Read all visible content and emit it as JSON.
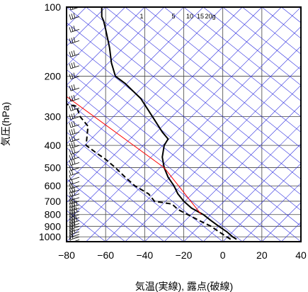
{
  "chart_data": {
    "type": "line",
    "title": "",
    "xlabel": "気温(実線), 露点(破線)",
    "ylabel": "気圧(hPa)",
    "xlim": [
      -80,
      40
    ],
    "ylim": [
      1050,
      100
    ],
    "y_scale": "log",
    "x_ticks": [
      -80,
      -60,
      -40,
      -20,
      0,
      20,
      40
    ],
    "y_ticks": [
      100,
      200,
      300,
      400,
      500,
      600,
      700,
      800,
      900,
      1000
    ],
    "mixing_ratio_labels": [
      "1",
      "5",
      "10",
      "15",
      "20g"
    ],
    "colors": {
      "temperature": "#000000",
      "dewpoint": "#000000",
      "isotherm": "#3030e0",
      "reference": "#ff0000",
      "grid": "#444444",
      "barb": "#000000"
    },
    "series": [
      {
        "style": "solid",
        "points": [
          [
            7,
            1025
          ],
          [
            5,
            1000
          ],
          [
            2,
            950
          ],
          [
            -2,
            900
          ],
          [
            -6,
            850
          ],
          [
            -10,
            800
          ],
          [
            -16,
            750
          ],
          [
            -20,
            700
          ],
          [
            -23,
            650
          ],
          [
            -25,
            600
          ],
          [
            -28,
            550
          ],
          [
            -30,
            500
          ],
          [
            -31,
            450
          ],
          [
            -30,
            400
          ],
          [
            -28,
            375
          ],
          [
            -31,
            350
          ],
          [
            -36,
            300
          ],
          [
            -42,
            250
          ],
          [
            -50,
            215
          ],
          [
            -55,
            200
          ],
          [
            -57,
            175
          ],
          [
            -58,
            150
          ],
          [
            -60,
            125
          ],
          [
            -61,
            115
          ],
          [
            -62,
            110
          ],
          [
            -62,
            100
          ]
        ]
      },
      {
        "style": "dashed",
        "points": [
          [
            4,
            1025
          ],
          [
            2,
            1000
          ],
          [
            -2,
            950
          ],
          [
            -6,
            900
          ],
          [
            -12,
            850
          ],
          [
            -18,
            800
          ],
          [
            -23,
            760
          ],
          [
            -26,
            720
          ],
          [
            -35,
            700
          ],
          [
            -38,
            650
          ],
          [
            -45,
            600
          ],
          [
            -50,
            550
          ],
          [
            -55,
            500
          ],
          [
            -60,
            460
          ],
          [
            -65,
            430
          ],
          [
            -70,
            400
          ],
          [
            -69,
            330
          ],
          [
            -73,
            300
          ],
          [
            -75,
            270
          ],
          [
            -80,
            265
          ]
        ]
      },
      {
        "style": "reference",
        "points": [
          [
            -80,
            245
          ],
          [
            -30,
            500
          ],
          [
            -11,
            800
          ]
        ]
      }
    ],
    "wind_barbs": [
      {
        "pressure": 1030,
        "speed": 5
      },
      {
        "pressure": 1000,
        "speed": 10
      },
      {
        "pressure": 975,
        "speed": 10
      },
      {
        "pressure": 950,
        "speed": 15
      },
      {
        "pressure": 925,
        "speed": 10
      },
      {
        "pressure": 900,
        "speed": 15
      },
      {
        "pressure": 875,
        "speed": 15
      },
      {
        "pressure": 850,
        "speed": 20
      },
      {
        "pressure": 825,
        "speed": 15
      },
      {
        "pressure": 800,
        "speed": 15
      },
      {
        "pressure": 775,
        "speed": 20
      },
      {
        "pressure": 750,
        "speed": 15
      },
      {
        "pressure": 725,
        "speed": 20
      },
      {
        "pressure": 700,
        "speed": 15
      },
      {
        "pressure": 675,
        "speed": 10
      },
      {
        "pressure": 650,
        "speed": 15
      },
      {
        "pressure": 625,
        "speed": 15
      },
      {
        "pressure": 600,
        "speed": 10
      },
      {
        "pressure": 575,
        "speed": 10
      },
      {
        "pressure": 550,
        "speed": 5
      },
      {
        "pressure": 525,
        "speed": 10
      },
      {
        "pressure": 500,
        "speed": 10
      },
      {
        "pressure": 475,
        "speed": 15
      },
      {
        "pressure": 450,
        "speed": 15
      },
      {
        "pressure": 425,
        "speed": 15
      },
      {
        "pressure": 400,
        "speed": 15
      },
      {
        "pressure": 375,
        "speed": 15
      },
      {
        "pressure": 350,
        "speed": 15
      },
      {
        "pressure": 325,
        "speed": 15
      },
      {
        "pressure": 300,
        "speed": 15
      },
      {
        "pressure": 275,
        "speed": 15
      },
      {
        "pressure": 250,
        "speed": 15
      },
      {
        "pressure": 225,
        "speed": 15
      },
      {
        "pressure": 200,
        "speed": 15
      },
      {
        "pressure": 180,
        "speed": 15
      },
      {
        "pressure": 160,
        "speed": 15
      },
      {
        "pressure": 140,
        "speed": 15
      },
      {
        "pressure": 125,
        "speed": 15
      },
      {
        "pressure": 110,
        "speed": 15
      },
      {
        "pressure": 100,
        "speed": 15
      }
    ]
  }
}
